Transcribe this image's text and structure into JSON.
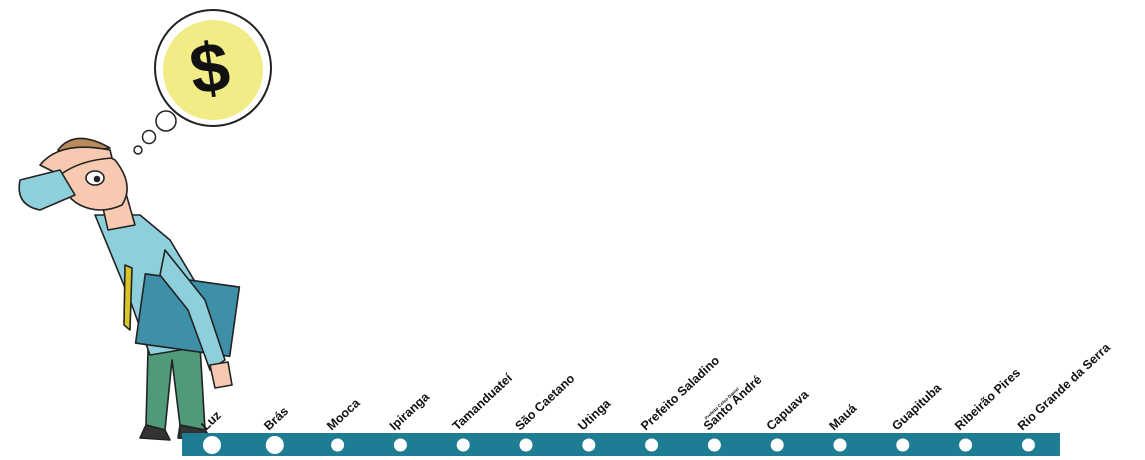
{
  "bubble": {
    "symbol": "$"
  },
  "stations": [
    {
      "name": "Luz"
    },
    {
      "name": "Brás"
    },
    {
      "name": "Mooca"
    },
    {
      "name": "Ipiranga"
    },
    {
      "name": "Tamanduateí"
    },
    {
      "name": "São Caetano"
    },
    {
      "name": "Utinga"
    },
    {
      "name": "Prefeito Saladino"
    },
    {
      "name": "Santo André",
      "sublabel": "Prefeito Celso Daniel"
    },
    {
      "name": "Capuava"
    },
    {
      "name": "Mauá"
    },
    {
      "name": "Guapituba"
    },
    {
      "name": "Ribeirão Pires"
    },
    {
      "name": "Rio Grande da Serra"
    }
  ]
}
